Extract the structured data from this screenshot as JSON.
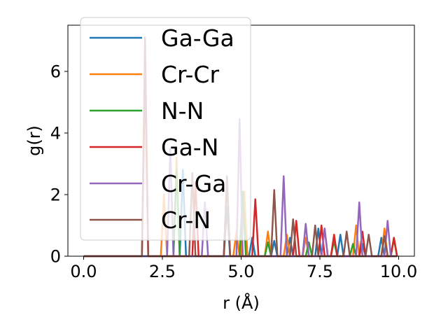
{
  "chart_data": {
    "type": "line",
    "title": "",
    "xlabel": "r (Å)",
    "ylabel": "g(r)",
    "xlim": [
      -0.5,
      10.5
    ],
    "ylim": [
      0,
      7.5
    ],
    "xticks": [
      0.0,
      2.5,
      5.0,
      7.5,
      10.0
    ],
    "xtick_labels": [
      "0.0",
      "2.5",
      "5.0",
      "7.5",
      "10.0"
    ],
    "yticks": [
      0,
      2,
      4,
      6
    ],
    "ytick_labels": [
      "0",
      "2",
      "4",
      "6"
    ],
    "grid": false,
    "legend_position": "top-left",
    "series": [
      {
        "name": "Ga-Ga",
        "color": "#1f77b4",
        "points": [
          [
            0,
            0
          ],
          [
            3.05,
            0
          ],
          [
            3.15,
            2.8
          ],
          [
            3.25,
            0
          ],
          [
            4.45,
            0
          ],
          [
            4.55,
            1.6
          ],
          [
            4.65,
            0
          ],
          [
            5.25,
            0
          ],
          [
            5.35,
            0.6
          ],
          [
            5.45,
            0
          ],
          [
            5.95,
            0
          ],
          [
            6.05,
            0.5
          ],
          [
            6.15,
            0
          ],
          [
            6.45,
            0
          ],
          [
            6.55,
            0.6
          ],
          [
            6.65,
            0
          ],
          [
            7.35,
            0
          ],
          [
            7.45,
            0.9
          ],
          [
            7.55,
            0
          ],
          [
            8.05,
            0
          ],
          [
            8.15,
            0.7
          ],
          [
            8.25,
            0
          ],
          [
            8.75,
            0
          ],
          [
            8.85,
            0.4
          ],
          [
            8.95,
            0
          ],
          [
            9.35,
            0
          ],
          [
            9.45,
            0.6
          ],
          [
            9.55,
            0
          ],
          [
            9.95,
            0
          ]
        ]
      },
      {
        "name": "Cr-Cr",
        "color": "#ff7f0e",
        "points": [
          [
            0,
            0
          ],
          [
            2.45,
            0
          ],
          [
            2.55,
            2.0
          ],
          [
            2.65,
            0
          ],
          [
            2.85,
            0
          ],
          [
            2.95,
            3.2
          ],
          [
            3.05,
            0
          ],
          [
            4.75,
            0
          ],
          [
            4.85,
            0.8
          ],
          [
            4.95,
            0
          ],
          [
            5.0,
            0
          ],
          [
            5.1,
            2.1
          ],
          [
            5.2,
            0
          ],
          [
            5.75,
            0
          ],
          [
            5.85,
            0.8
          ],
          [
            5.95,
            0
          ],
          [
            6.35,
            0
          ],
          [
            6.45,
            0.7
          ],
          [
            6.55,
            0
          ],
          [
            6.95,
            0
          ],
          [
            7.05,
            0.6
          ],
          [
            7.15,
            0
          ],
          [
            7.55,
            0
          ],
          [
            7.65,
            0.9
          ],
          [
            7.75,
            0
          ],
          [
            8.55,
            0
          ],
          [
            8.65,
            1.0
          ],
          [
            8.75,
            0
          ],
          [
            9.45,
            0
          ],
          [
            9.55,
            0.9
          ],
          [
            9.65,
            0
          ],
          [
            9.75,
            0
          ],
          [
            9.85,
            0.6
          ],
          [
            9.95,
            0
          ]
        ]
      },
      {
        "name": "N-N",
        "color": "#2ca02c",
        "points": [
          [
            0,
            0
          ],
          [
            2.85,
            0
          ],
          [
            2.95,
            2.8
          ],
          [
            3.05,
            0
          ],
          [
            4.95,
            0
          ],
          [
            5.05,
            2.1
          ],
          [
            5.15,
            0
          ],
          [
            5.75,
            0
          ],
          [
            5.85,
            0.45
          ],
          [
            5.95,
            0
          ],
          [
            7.05,
            0
          ],
          [
            7.15,
            0.45
          ],
          [
            7.25,
            0
          ],
          [
            7.85,
            0
          ],
          [
            7.95,
            0.5
          ],
          [
            8.05,
            0
          ],
          [
            8.45,
            0
          ],
          [
            8.55,
            0.4
          ],
          [
            8.65,
            0
          ],
          [
            9.75,
            0
          ],
          [
            9.85,
            0.55
          ],
          [
            9.95,
            0
          ]
        ]
      },
      {
        "name": "Ga-N",
        "color": "#d62728",
        "points": [
          [
            0,
            0
          ],
          [
            1.85,
            0
          ],
          [
            1.95,
            6.0
          ],
          [
            2.05,
            0
          ],
          [
            3.45,
            0
          ],
          [
            3.55,
            2.4
          ],
          [
            3.65,
            0
          ],
          [
            4.45,
            0
          ],
          [
            4.55,
            2.5
          ],
          [
            4.65,
            0
          ],
          [
            5.35,
            0
          ],
          [
            5.45,
            1.85
          ],
          [
            5.55,
            0
          ],
          [
            6.65,
            0
          ],
          [
            6.75,
            1.15
          ],
          [
            6.85,
            0
          ],
          [
            7.45,
            0
          ],
          [
            7.55,
            1.0
          ],
          [
            7.65,
            0
          ],
          [
            7.85,
            0
          ],
          [
            7.95,
            0.7
          ],
          [
            8.05,
            0
          ],
          [
            8.75,
            0
          ],
          [
            8.85,
            0.8
          ],
          [
            8.95,
            0
          ],
          [
            9.75,
            0
          ],
          [
            9.85,
            0.6
          ],
          [
            9.95,
            0
          ]
        ]
      },
      {
        "name": "Cr-Ga",
        "color": "#9467bd",
        "points": [
          [
            0,
            0
          ],
          [
            2.65,
            0
          ],
          [
            2.75,
            3.5
          ],
          [
            2.85,
            0
          ],
          [
            3.75,
            0
          ],
          [
            3.85,
            1.75
          ],
          [
            3.95,
            0
          ],
          [
            4.85,
            0
          ],
          [
            4.95,
            4.45
          ],
          [
            5.05,
            0
          ],
          [
            6.25,
            0
          ],
          [
            6.35,
            2.6
          ],
          [
            6.45,
            0
          ],
          [
            6.95,
            0
          ],
          [
            7.05,
            1.05
          ],
          [
            7.15,
            0
          ],
          [
            7.55,
            0
          ],
          [
            7.65,
            0.9
          ],
          [
            7.75,
            0
          ],
          [
            8.65,
            0
          ],
          [
            8.75,
            1.75
          ],
          [
            8.85,
            0
          ],
          [
            9.55,
            0
          ],
          [
            9.65,
            1.15
          ],
          [
            9.75,
            0
          ],
          [
            9.95,
            0
          ]
        ]
      },
      {
        "name": "Cr-N",
        "color": "#8c564b",
        "points": [
          [
            0,
            0
          ],
          [
            1.85,
            0
          ],
          [
            1.95,
            7.1
          ],
          [
            2.05,
            0
          ],
          [
            3.35,
            0
          ],
          [
            3.45,
            2.7
          ],
          [
            3.55,
            0
          ],
          [
            4.45,
            0
          ],
          [
            4.55,
            2.6
          ],
          [
            4.65,
            0
          ],
          [
            5.95,
            0
          ],
          [
            6.05,
            2.15
          ],
          [
            6.15,
            0
          ],
          [
            6.55,
            0
          ],
          [
            6.65,
            1.2
          ],
          [
            6.75,
            0
          ],
          [
            7.25,
            0
          ],
          [
            7.35,
            1.0
          ],
          [
            7.45,
            0
          ],
          [
            8.25,
            0
          ],
          [
            8.35,
            0.8
          ],
          [
            8.45,
            0
          ],
          [
            8.95,
            0
          ],
          [
            9.05,
            0.7
          ],
          [
            9.15,
            0
          ],
          [
            9.45,
            0
          ],
          [
            9.55,
            0.65
          ],
          [
            9.65,
            0
          ],
          [
            9.95,
            0
          ]
        ]
      }
    ]
  }
}
